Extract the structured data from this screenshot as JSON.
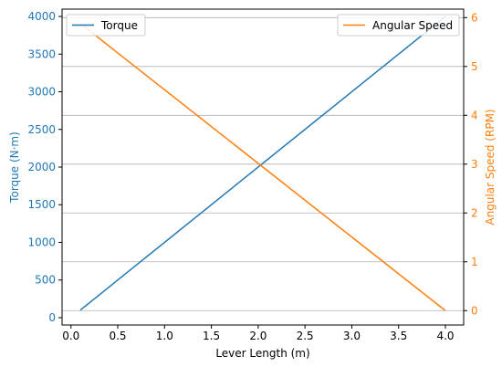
{
  "chart_data": {
    "type": "line",
    "x_axis": {
      "label": "Lever Length (m)",
      "ticks": [
        0.0,
        0.5,
        1.0,
        1.5,
        2.0,
        2.5,
        3.0,
        3.5,
        4.0
      ],
      "tick_labels": [
        "0.0",
        "0.5",
        "1.0",
        "1.5",
        "2.0",
        "2.5",
        "3.0",
        "3.5",
        "4.0"
      ],
      "range": [
        -0.095,
        4.195
      ]
    },
    "y_axis_left": {
      "label": "Torque (N·m)",
      "ticks": [
        0,
        500,
        1000,
        1500,
        2000,
        2500,
        3000,
        3500,
        4000
      ],
      "tick_labels": [
        "0",
        "500",
        "1000",
        "1500",
        "2000",
        "2500",
        "3000",
        "3500",
        "4000"
      ],
      "range": [
        -97.5,
        4097.5
      ],
      "color": "#1f77b4"
    },
    "y_axis_right": {
      "label": "Angular Speed (RPM)",
      "ticks": [
        0,
        1,
        2,
        3,
        4,
        5,
        6
      ],
      "tick_labels": [
        "0",
        "1",
        "2",
        "3",
        "4",
        "5",
        "6"
      ],
      "range": [
        -0.294,
        6.174
      ],
      "color": "#ff7f0e",
      "grid": true
    },
    "series": [
      {
        "name": "Torque",
        "axis": "left",
        "color": "#1f77b4",
        "x": [
          0.1,
          4.0
        ],
        "y": [
          100,
          4000
        ]
      },
      {
        "name": "Angular Speed",
        "axis": "right",
        "color": "#ff7f0e",
        "x": [
          0.1,
          4.0
        ],
        "y": [
          5.88,
          0.0
        ]
      }
    ],
    "legends": [
      {
        "placement": "top-left",
        "entries": [
          "Torque"
        ]
      },
      {
        "placement": "top-right",
        "entries": [
          "Angular Speed"
        ]
      }
    ]
  }
}
